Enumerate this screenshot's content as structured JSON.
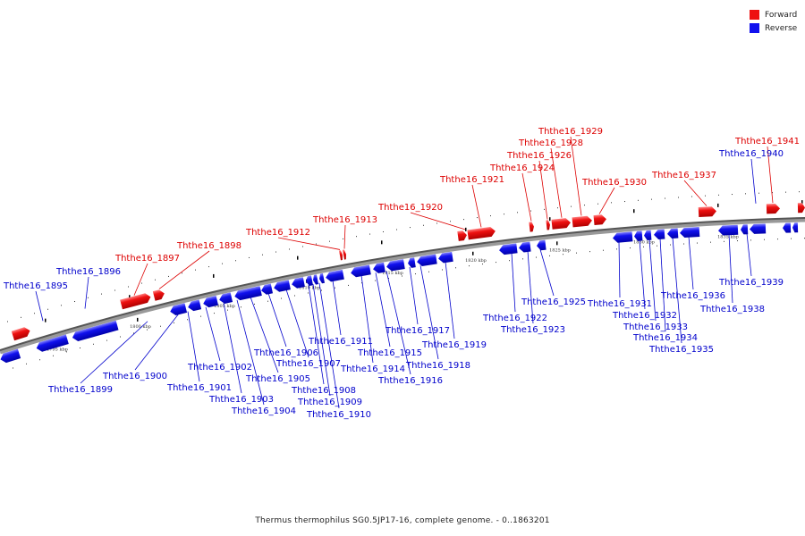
{
  "legend": [
    {
      "label": "Forward",
      "color": "#ee1111"
    },
    {
      "label": "Reverse",
      "color": "#1111ee"
    }
  ],
  "caption": "Thermus thermophilus SG0.5JP17-16, complete genome. - 0..1863201",
  "tick_labels": [
    "1795 kbp",
    "1800 kbp",
    "1805 kbp",
    "1810 kbp",
    "1815 kbp",
    "1820 kbp",
    "1825 kbp",
    "1830 kbp",
    "1835 kbp"
  ],
  "forward_genes": [
    "Ththe16_1897",
    "Ththe16_1898",
    "Ththe16_1912",
    "Ththe16_1913",
    "Ththe16_1920",
    "Ththe16_1921",
    "Ththe16_1924",
    "Ththe16_1926",
    "Ththe16_1928",
    "Ththe16_1929",
    "Ththe16_1930",
    "Ththe16_1937",
    "Ththe16_1941"
  ],
  "reverse_genes": [
    "Ththe16_1895",
    "Ththe16_1896",
    "Ththe16_1899",
    "Ththe16_1900",
    "Ththe16_1901",
    "Ththe16_1902",
    "Ththe16_1903",
    "Ththe16_1904",
    "Ththe16_1905",
    "Ththe16_1906",
    "Ththe16_1907",
    "Ththe16_1908",
    "Ththe16_1909",
    "Ththe16_1910",
    "Ththe16_1911",
    "Ththe16_1914",
    "Ththe16_1915",
    "Ththe16_1916",
    "Ththe16_1917",
    "Ththe16_1918",
    "Ththe16_1919",
    "Ththe16_1922",
    "Ththe16_1923",
    "Ththe16_1925",
    "Ththe16_1931",
    "Ththe16_1932",
    "Ththe16_1933",
    "Ththe16_1934",
    "Ththe16_1935",
    "Ththe16_1936",
    "Ththe16_1938",
    "Ththe16_1939",
    "Ththe16_1940"
  ]
}
